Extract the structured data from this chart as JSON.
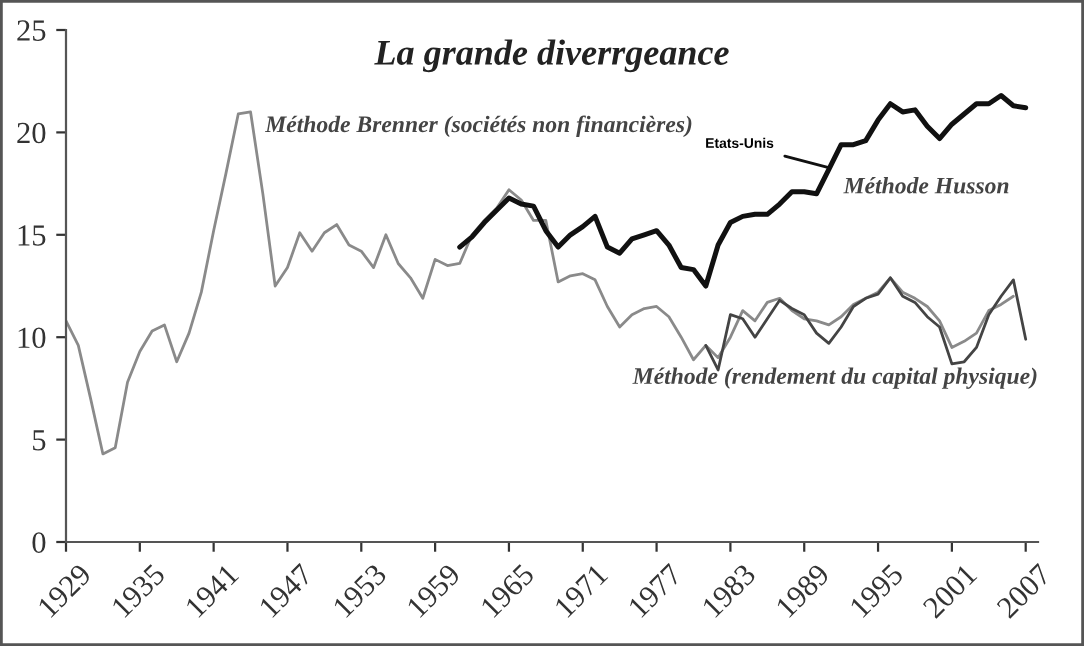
{
  "chart_data": {
    "type": "line",
    "title": "La grande diverrgeance",
    "xlim": [
      1929,
      2008
    ],
    "xticks": [
      1929,
      1935,
      1941,
      1947,
      1953,
      1959,
      1965,
      1971,
      1977,
      1983,
      1989,
      1995,
      2001,
      2007
    ],
    "ylim": [
      0,
      25
    ],
    "yticks": [
      0,
      5,
      10,
      15,
      20,
      25
    ],
    "grid": false,
    "legend": false,
    "marker": "none",
    "line_style": "solid",
    "series": [
      {
        "name": "Méthode Brenner (sociétés non financières)",
        "color": "#8a8a8a",
        "x": [
          1929,
          1930,
          1931,
          1932,
          1933,
          1934,
          1935,
          1936,
          1937,
          1938,
          1939,
          1940,
          1941,
          1942,
          1943,
          1944,
          1945,
          1946,
          1947,
          1948,
          1949,
          1950,
          1951,
          1952,
          1953,
          1954,
          1955,
          1956,
          1957,
          1958,
          1959,
          1960,
          1961,
          1962,
          1963,
          1964,
          1965,
          1966,
          1967,
          1968,
          1969,
          1970,
          1971,
          1972,
          1973,
          1974,
          1975,
          1976,
          1977,
          1978,
          1979,
          1980,
          1981,
          1982,
          1983,
          1984,
          1985,
          1986,
          1987,
          1988,
          1989,
          1990,
          1991,
          1992,
          1993,
          1994,
          1995,
          1996,
          1997,
          1998,
          1999,
          2000,
          2001,
          2002,
          2003,
          2004,
          2005,
          2006
        ],
        "values": [
          10.8,
          9.6,
          7.0,
          4.3,
          4.6,
          7.8,
          9.3,
          10.3,
          10.6,
          8.8,
          10.2,
          12.2,
          15.2,
          18.0,
          20.9,
          21.0,
          17.0,
          12.5,
          13.4,
          15.1,
          14.2,
          15.1,
          15.5,
          14.5,
          14.2,
          13.4,
          15.0,
          13.6,
          12.9,
          11.9,
          13.8,
          13.5,
          13.6,
          15.0,
          15.7,
          16.3,
          17.2,
          16.7,
          15.7,
          15.7,
          12.7,
          13.0,
          13.1,
          12.8,
          11.5,
          10.5,
          11.1,
          11.4,
          11.5,
          11.0,
          10.0,
          8.9,
          9.6,
          9.0,
          10.0,
          11.3,
          10.8,
          11.7,
          11.9,
          11.3,
          10.9,
          10.8,
          10.6,
          11.0,
          11.6,
          11.9,
          12.2,
          12.9,
          12.2,
          11.9,
          11.5,
          10.8,
          9.5,
          9.8,
          10.2,
          11.3,
          11.6,
          12.0
        ]
      },
      {
        "name": "Méthode Husson",
        "color": "#111111",
        "x": [
          1961,
          1962,
          1963,
          1964,
          1965,
          1966,
          1967,
          1968,
          1969,
          1970,
          1971,
          1972,
          1973,
          1974,
          1975,
          1976,
          1977,
          1978,
          1979,
          1980,
          1981,
          1982,
          1983,
          1984,
          1985,
          1986,
          1987,
          1988,
          1989,
          1990,
          1991,
          1992,
          1993,
          1994,
          1995,
          1996,
          1997,
          1998,
          1999,
          2000,
          2001,
          2002,
          2003,
          2004,
          2005,
          2006,
          2007
        ],
        "values": [
          14.4,
          14.9,
          15.6,
          16.2,
          16.8,
          16.5,
          16.4,
          15.2,
          14.4,
          15.0,
          15.4,
          15.9,
          14.4,
          14.1,
          14.8,
          15.0,
          15.2,
          14.5,
          13.4,
          13.3,
          12.5,
          14.5,
          15.6,
          15.9,
          16.0,
          16.0,
          16.5,
          17.1,
          17.1,
          17.0,
          18.2,
          19.4,
          19.4,
          19.6,
          20.6,
          21.4,
          21.0,
          21.1,
          20.3,
          19.7,
          20.4,
          20.9,
          21.4,
          21.4,
          21.8,
          21.3,
          21.2
        ]
      },
      {
        "name": "Méthode (rendement du capital physique)",
        "color": "#444444",
        "x": [
          1981,
          1982,
          1983,
          1984,
          1985,
          1986,
          1987,
          1988,
          1989,
          1990,
          1991,
          1992,
          1993,
          1994,
          1995,
          1996,
          1997,
          1998,
          1999,
          2000,
          2001,
          2002,
          2003,
          2004,
          2005,
          2006,
          2007
        ],
        "values": [
          9.6,
          8.4,
          11.1,
          10.9,
          10.0,
          10.9,
          11.8,
          11.4,
          11.1,
          10.2,
          9.7,
          10.5,
          11.5,
          11.9,
          12.1,
          12.9,
          12.0,
          11.7,
          11.0,
          10.5,
          8.7,
          8.8,
          9.5,
          11.1,
          12.0,
          12.8,
          9.9
        ]
      }
    ],
    "annotations": [
      {
        "text": "Etats-Unis",
        "x": 1991.5,
        "y": 18.2
      }
    ]
  }
}
